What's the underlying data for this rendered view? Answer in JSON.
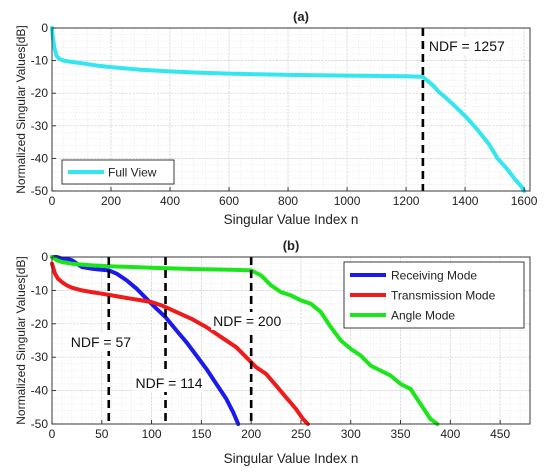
{
  "chart_data": [
    {
      "type": "line",
      "title": "(a)",
      "xlabel": "Singular Value Index n",
      "ylabel": "Normalized Singular Values[dB]",
      "xlim": [
        0,
        1620
      ],
      "ylim": [
        -50,
        0
      ],
      "xticks": [
        "0",
        "200",
        "400",
        "600",
        "800",
        "1000",
        "1200",
        "1400",
        "1600"
      ],
      "yticks": [
        "0",
        "-10",
        "-20",
        "-30",
        "-40",
        "-50"
      ],
      "grid": true,
      "legend_position": "bottom-left",
      "series": [
        {
          "name": "Full View",
          "color": "#33E6F0",
          "x": [
            0,
            3,
            8,
            15,
            25,
            40,
            60,
            100,
            150,
            200,
            300,
            400,
            500,
            600,
            700,
            800,
            900,
            1000,
            1100,
            1200,
            1240,
            1257,
            1270,
            1290,
            1310,
            1330,
            1360,
            1400,
            1440,
            1480,
            1510,
            1540,
            1570,
            1590,
            1600
          ],
          "y": [
            0,
            -3,
            -6,
            -8.5,
            -9.5,
            -10,
            -10.3,
            -10.8,
            -11.5,
            -12,
            -12.8,
            -13.3,
            -13.7,
            -14,
            -14.2,
            -14.4,
            -14.5,
            -14.6,
            -14.7,
            -14.8,
            -14.9,
            -15,
            -16,
            -17.5,
            -19.5,
            -21,
            -23.5,
            -27,
            -31,
            -35.5,
            -40,
            -43,
            -46.5,
            -48.5,
            -50
          ]
        }
      ],
      "annotations": [
        {
          "label": "NDF  = 1257",
          "x": 1257,
          "style": "dashed-vertical-line"
        }
      ]
    },
    {
      "type": "line",
      "title": "(b)",
      "xlabel": "Singular Value Index n",
      "ylabel": "Normalized Singular Values[dB]",
      "xlim": [
        0,
        480
      ],
      "ylim": [
        -50,
        0
      ],
      "xticks": [
        "0",
        "50",
        "100",
        "150",
        "200",
        "250",
        "300",
        "350",
        "400",
        "450"
      ],
      "yticks": [
        "0",
        "-10",
        "-20",
        "-30",
        "-40",
        "-50"
      ],
      "grid": true,
      "legend_position": "top-right",
      "series": [
        {
          "name": "Receiving Mode",
          "color": "#1A1AF0",
          "x": [
            0,
            5,
            10,
            15,
            20,
            25,
            30,
            40,
            50,
            57,
            65,
            75,
            85,
            95,
            105,
            114,
            125,
            135,
            145,
            155,
            165,
            175,
            182,
            187
          ],
          "y": [
            0,
            0,
            -0.5,
            -0.5,
            -1,
            -2,
            -3,
            -3.5,
            -3.8,
            -4,
            -5,
            -7,
            -9.5,
            -12.5,
            -15.5,
            -18,
            -22,
            -25.5,
            -29.5,
            -33.5,
            -38,
            -42.5,
            -46.5,
            -50
          ]
        },
        {
          "name": "Transmission Mode",
          "color": "#F01A1A",
          "x": [
            0,
            3,
            6,
            10,
            15,
            20,
            30,
            40,
            50,
            60,
            70,
            80,
            90,
            100,
            110,
            114,
            125,
            140,
            155,
            170,
            185,
            195,
            205,
            215,
            225,
            235,
            245,
            252,
            257
          ],
          "y": [
            -2,
            -5,
            -6.5,
            -7.5,
            -8.5,
            -9.2,
            -10,
            -10.5,
            -11,
            -11.5,
            -12,
            -12.5,
            -13,
            -13.5,
            -14.5,
            -15,
            -16.5,
            -18.5,
            -21,
            -24,
            -27,
            -30,
            -33,
            -35,
            -38.5,
            -42,
            -45.5,
            -48.5,
            -50
          ]
        },
        {
          "name": "Angle Mode",
          "color": "#1AE61A",
          "x": [
            0,
            5,
            10,
            20,
            40,
            60,
            80,
            100,
            120,
            140,
            160,
            180,
            200,
            210,
            220,
            230,
            240,
            250,
            260,
            270,
            280,
            290,
            300,
            310,
            320,
            330,
            340,
            350,
            360,
            370,
            380,
            387
          ],
          "y": [
            0,
            -1,
            -1.5,
            -2,
            -2.5,
            -2.8,
            -3,
            -3.2,
            -3.4,
            -3.6,
            -3.7,
            -3.8,
            -4,
            -5.5,
            -8.5,
            -10.5,
            -11.5,
            -13,
            -14,
            -16.5,
            -21,
            -25,
            -27.5,
            -29.5,
            -32.5,
            -34,
            -35.5,
            -38,
            -39.5,
            -44,
            -48.5,
            -50
          ]
        }
      ],
      "annotations": [
        {
          "label": "NDF  = 57",
          "x": 57,
          "style": "dashed-vertical-line"
        },
        {
          "label": "NDF  = 114",
          "x": 114,
          "style": "dashed-vertical-line"
        },
        {
          "label": "NDF  = 200",
          "x": 200,
          "style": "dashed-vertical-line"
        }
      ]
    }
  ]
}
